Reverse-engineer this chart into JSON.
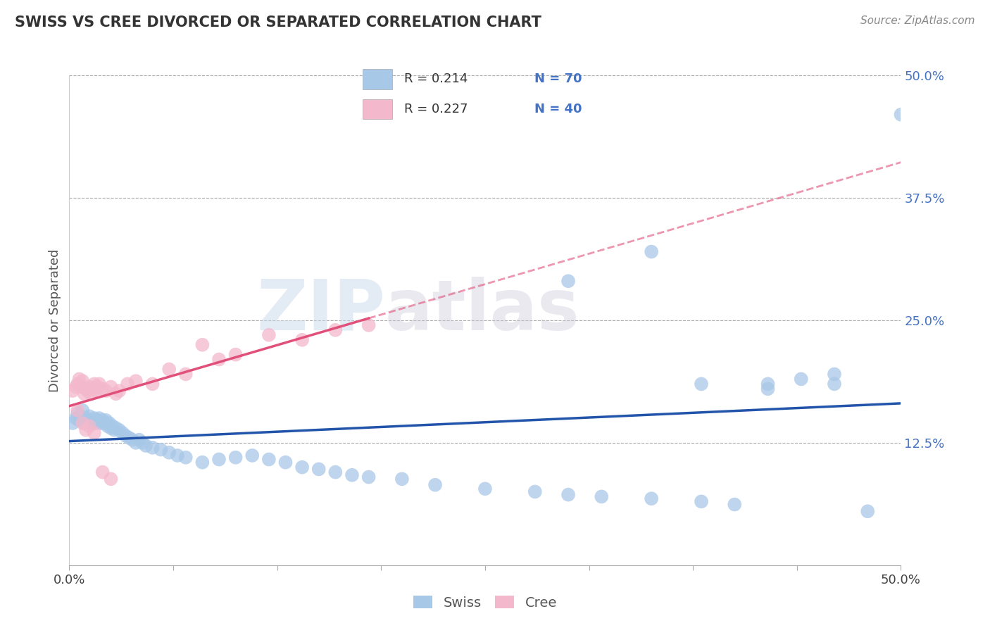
{
  "title": "SWISS VS CREE DIVORCED OR SEPARATED CORRELATION CHART",
  "source": "Source: ZipAtlas.com",
  "ylabel": "Divorced or Separated",
  "xlim": [
    0.0,
    0.5
  ],
  "ylim": [
    0.0,
    0.5
  ],
  "ytick_positions": [
    0.125,
    0.25,
    0.375,
    0.5
  ],
  "ytick_labels": [
    "12.5%",
    "25.0%",
    "37.5%",
    "50.0%"
  ],
  "swiss_color": "#a8c8e8",
  "cree_color": "#f4b8cc",
  "swiss_line_color": "#2255aa",
  "cree_line_color": "#e0507a",
  "swiss_R": 0.214,
  "swiss_N": 70,
  "cree_R": 0.227,
  "cree_N": 40,
  "legend_label_swiss": "Swiss",
  "legend_label_cree": "Cree",
  "watermark_zip": "ZIP",
  "watermark_atlas": "atlas",
  "swiss_x": [
    0.002,
    0.004,
    0.005,
    0.006,
    0.007,
    0.008,
    0.009,
    0.01,
    0.011,
    0.012,
    0.013,
    0.014,
    0.015,
    0.016,
    0.017,
    0.018,
    0.019,
    0.02,
    0.021,
    0.022,
    0.023,
    0.024,
    0.025,
    0.026,
    0.027,
    0.028,
    0.03,
    0.032,
    0.034,
    0.036,
    0.038,
    0.04,
    0.042,
    0.044,
    0.046,
    0.05,
    0.055,
    0.06,
    0.065,
    0.07,
    0.08,
    0.09,
    0.1,
    0.11,
    0.12,
    0.13,
    0.14,
    0.15,
    0.16,
    0.17,
    0.18,
    0.2,
    0.22,
    0.25,
    0.28,
    0.3,
    0.32,
    0.35,
    0.38,
    0.4,
    0.42,
    0.44,
    0.46,
    0.48,
    0.5,
    0.38,
    0.42,
    0.46,
    0.35,
    0.3
  ],
  "swiss_y": [
    0.145,
    0.15,
    0.155,
    0.148,
    0.152,
    0.158,
    0.145,
    0.15,
    0.148,
    0.152,
    0.145,
    0.148,
    0.15,
    0.145,
    0.148,
    0.15,
    0.145,
    0.148,
    0.145,
    0.148,
    0.142,
    0.145,
    0.14,
    0.142,
    0.138,
    0.14,
    0.138,
    0.135,
    0.132,
    0.13,
    0.128,
    0.125,
    0.128,
    0.125,
    0.122,
    0.12,
    0.118,
    0.115,
    0.112,
    0.11,
    0.105,
    0.108,
    0.11,
    0.112,
    0.108,
    0.105,
    0.1,
    0.098,
    0.095,
    0.092,
    0.09,
    0.088,
    0.082,
    0.078,
    0.075,
    0.072,
    0.07,
    0.068,
    0.065,
    0.062,
    0.185,
    0.19,
    0.195,
    0.055,
    0.46,
    0.185,
    0.18,
    0.185,
    0.32,
    0.29
  ],
  "cree_x": [
    0.002,
    0.004,
    0.005,
    0.006,
    0.007,
    0.008,
    0.009,
    0.01,
    0.011,
    0.012,
    0.013,
    0.014,
    0.015,
    0.016,
    0.017,
    0.018,
    0.02,
    0.022,
    0.025,
    0.028,
    0.03,
    0.035,
    0.04,
    0.05,
    0.06,
    0.07,
    0.08,
    0.09,
    0.1,
    0.12,
    0.14,
    0.16,
    0.18,
    0.005,
    0.008,
    0.01,
    0.012,
    0.015,
    0.02,
    0.025
  ],
  "cree_y": [
    0.178,
    0.182,
    0.185,
    0.19,
    0.182,
    0.188,
    0.175,
    0.18,
    0.178,
    0.182,
    0.175,
    0.18,
    0.185,
    0.178,
    0.182,
    0.185,
    0.18,
    0.178,
    0.182,
    0.175,
    0.178,
    0.185,
    0.188,
    0.185,
    0.2,
    0.195,
    0.225,
    0.21,
    0.215,
    0.235,
    0.23,
    0.24,
    0.245,
    0.158,
    0.145,
    0.138,
    0.142,
    0.135,
    0.095,
    0.088
  ]
}
